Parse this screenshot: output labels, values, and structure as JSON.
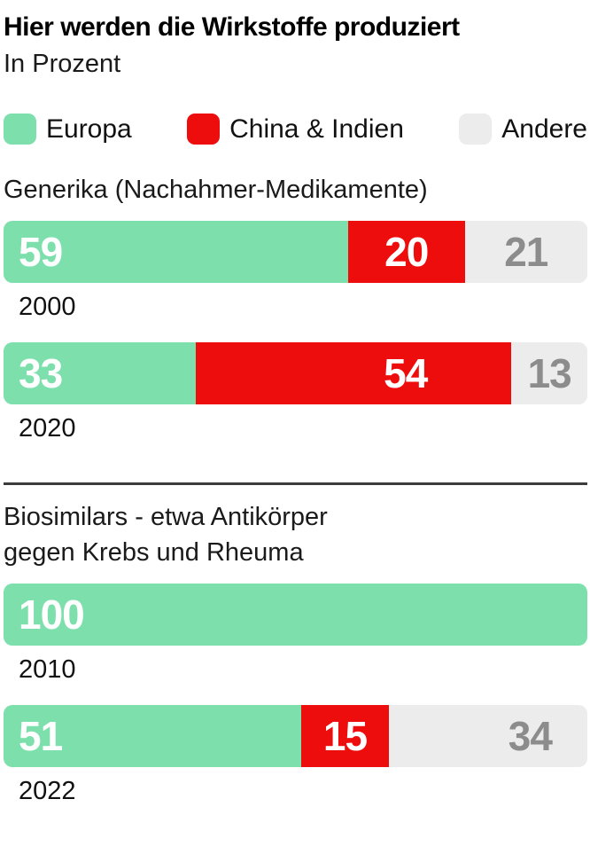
{
  "header": {
    "title": "Hier werden die Wirkstoffe produziert",
    "subtitle": "In Prozent"
  },
  "colors": {
    "europa": "#7de0ac",
    "china_indien": "#ee0d0d",
    "andere": "#ececec",
    "muted_text": "#8c8c8c",
    "divider": "#3c3c3c"
  },
  "legend": [
    {
      "key": "europa",
      "label": "Europa"
    },
    {
      "key": "china_indien",
      "label": "China & Indien"
    },
    {
      "key": "andere",
      "label": "Andere"
    }
  ],
  "chart_data": {
    "type": "bar",
    "subtype": "horizontal-stacked",
    "unit": "percent",
    "title": "Hier werden die Wirkstoffe produziert",
    "subtitle": "In Prozent",
    "legend_position": "top",
    "xlim": [
      0,
      100
    ],
    "series_names": [
      "Europa",
      "China & Indien",
      "Andere"
    ],
    "sections": [
      {
        "heading": "Generika (Nachahmer-Medikamente)",
        "heading_lines": [
          "Generika (Nachahmer-Medikamente)"
        ],
        "rows": [
          {
            "year": "2000",
            "segments": [
              {
                "series": "Europa",
                "key": "europa",
                "value": 59,
                "label": "59",
                "label_align": "left"
              },
              {
                "series": "China & Indien",
                "key": "china_indien",
                "value": 20,
                "label": "20",
                "label_align": "center"
              },
              {
                "series": "Andere",
                "key": "andere",
                "value": 21,
                "label": "21",
                "label_align": "center"
              }
            ]
          },
          {
            "year": "2020",
            "segments": [
              {
                "series": "Europa",
                "key": "europa",
                "value": 33,
                "label": "33",
                "label_align": "left"
              },
              {
                "series": "China & Indien",
                "key": "china_indien",
                "value": 54,
                "label": "54",
                "label_align": "right",
                "label_pad": 95
              },
              {
                "series": "Andere",
                "key": "andere",
                "value": 13,
                "label": "13",
                "label_align": "center"
              }
            ]
          }
        ]
      },
      {
        "heading": "Biosimilars - etwa Antikörper gegen Krebs und Rheuma",
        "heading_lines": [
          "Biosimilars - etwa Antikörper",
          "gegen Krebs und Rheuma"
        ],
        "rows": [
          {
            "year": "2010",
            "segments": [
              {
                "series": "Europa",
                "key": "europa",
                "value": 100,
                "label": "100",
                "label_align": "left"
              }
            ]
          },
          {
            "year": "2022",
            "segments": [
              {
                "series": "Europa",
                "key": "europa",
                "value": 51,
                "label": "51",
                "label_align": "left"
              },
              {
                "series": "China & Indien",
                "key": "china_indien",
                "value": 15,
                "label": "15",
                "label_align": "center"
              },
              {
                "series": "Andere",
                "key": "andere",
                "value": 34,
                "label": "34",
                "label_align": "right",
                "label_pad": 40
              }
            ]
          }
        ]
      }
    ]
  }
}
